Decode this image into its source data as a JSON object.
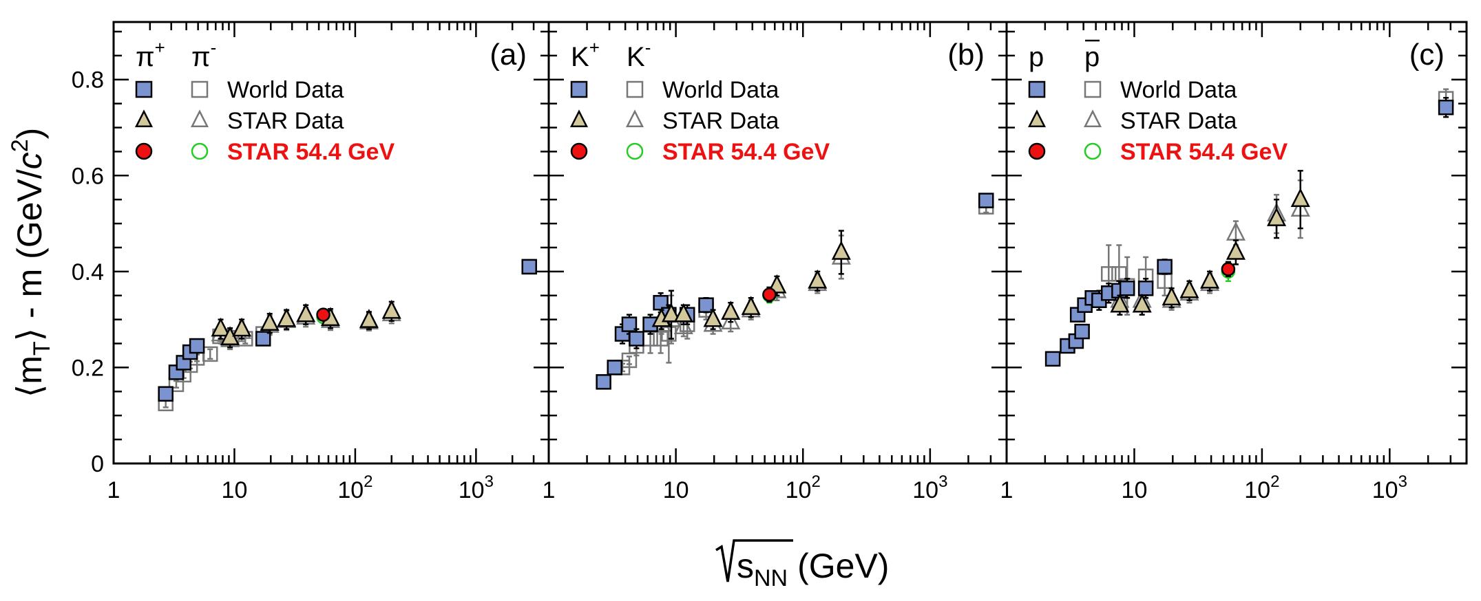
{
  "figure": {
    "y_axis_title": {
      "open": "⟨m",
      "sub": "T",
      "mid": "⟩ - m (GeV/",
      "c": "c",
      "exp": "2",
      "close": ")"
    },
    "x_axis_title": {
      "base": "s",
      "sub": "NN",
      "unit": "(GeV)"
    },
    "x_tick_labels": [
      "1",
      "10",
      "10",
      "10"
    ],
    "x_tick_exps": [
      "",
      "",
      "2",
      "3"
    ],
    "y_tick_labels": [
      "0",
      "0.2",
      "0.4",
      "0.6",
      "0.8"
    ],
    "legend_rows": [
      "World Data",
      "STAR Data",
      "STAR 54.4 GeV"
    ]
  },
  "colors": {
    "world_fill": "#7b93cf",
    "star_fill": "#d2c89b",
    "star544_fill": "#ee1111",
    "neg_open": "#777777",
    "neg_star544": "#22cc22",
    "legend_red_text": "#ee1111"
  },
  "chart_data": [
    {
      "type": "scatter",
      "panel_label": "(a)",
      "particles": {
        "pos": "π",
        "pos_sup": "+",
        "neg": "π",
        "neg_sup": "-",
        "neg_bar": false
      },
      "xscale": "log",
      "xlim": [
        1,
        4000
      ],
      "ylim": [
        0,
        0.92
      ],
      "xlabel": "√sNN (GeV)",
      "ylabel": "⟨mT⟩ - m (GeV/c²)",
      "series": [
        {
          "name": "World Data",
          "charge": "+",
          "points": [
            [
              2.7,
              0.145
            ],
            [
              3.3,
              0.19
            ],
            [
              3.8,
              0.21
            ],
            [
              4.3,
              0.232
            ],
            [
              4.9,
              0.245
            ],
            [
              17.3,
              0.26
            ],
            [
              2760,
              0.41
            ]
          ],
          "err": [
            0.008,
            0.007,
            0.007,
            0.007,
            0.007,
            0.008,
            0.008
          ]
        },
        {
          "name": "World Data",
          "charge": "-",
          "points": [
            [
              2.7,
              0.125
            ],
            [
              3.3,
              0.165
            ],
            [
              3.8,
              0.185
            ],
            [
              4.3,
              0.205
            ],
            [
              4.9,
              0.22
            ],
            [
              6.3,
              0.228
            ],
            [
              7.6,
              0.265
            ],
            [
              8.8,
              0.262
            ],
            [
              12.3,
              0.26
            ],
            [
              17.3,
              0.27
            ],
            [
              2760,
              0.41
            ]
          ],
          "err": [
            0.008,
            0.007,
            0.007,
            0.007,
            0.007,
            0.01,
            0.01,
            0.01,
            0.01,
            0.01,
            0.008
          ]
        },
        {
          "name": "STAR Data",
          "charge": "+",
          "points": [
            [
              7.7,
              0.28
            ],
            [
              9.2,
              0.262
            ],
            [
              11.5,
              0.28
            ],
            [
              19.6,
              0.292
            ],
            [
              27,
              0.3
            ],
            [
              39,
              0.31
            ],
            [
              62.4,
              0.302
            ],
            [
              130,
              0.298
            ],
            [
              200,
              0.317
            ]
          ],
          "err": [
            0.02,
            0.02,
            0.02,
            0.02,
            0.02,
            0.02,
            0.02,
            0.018,
            0.02
          ]
        },
        {
          "name": "STAR Data",
          "charge": "-",
          "points": [
            [
              7.7,
              0.27
            ],
            [
              9.2,
              0.258
            ],
            [
              11.5,
              0.275
            ],
            [
              19.6,
              0.288
            ],
            [
              27,
              0.298
            ],
            [
              39,
              0.305
            ],
            [
              62.4,
              0.298
            ],
            [
              130,
              0.295
            ],
            [
              200,
              0.312
            ]
          ],
          "err": [
            0.02,
            0.02,
            0.02,
            0.02,
            0.02,
            0.02,
            0.02,
            0.018,
            0.02
          ]
        },
        {
          "name": "STAR 54.4 GeV",
          "charge": "+",
          "points": [
            [
              54.4,
              0.31
            ]
          ],
          "err": [
            0.012
          ]
        },
        {
          "name": "STAR 54.4 GeV",
          "charge": "-",
          "points": [
            [
              54.4,
              0.305
            ]
          ],
          "err": [
            0.012
          ]
        }
      ]
    },
    {
      "type": "scatter",
      "panel_label": "(b)",
      "particles": {
        "pos": "K",
        "pos_sup": "+",
        "neg": "K",
        "neg_sup": "-",
        "neg_bar": false
      },
      "xscale": "log",
      "xlim": [
        1,
        4000
      ],
      "ylim": [
        0,
        0.92
      ],
      "xlabel": "√sNN (GeV)",
      "ylabel": "⟨mT⟩ - m (GeV/c²)",
      "series": [
        {
          "name": "World Data",
          "charge": "+",
          "points": [
            [
              2.7,
              0.17
            ],
            [
              3.3,
              0.2
            ],
            [
              3.8,
              0.27
            ],
            [
              4.3,
              0.29
            ],
            [
              4.9,
              0.26
            ],
            [
              6.3,
              0.29
            ],
            [
              7.6,
              0.335
            ],
            [
              8.8,
              0.31
            ],
            [
              12.3,
              0.31
            ],
            [
              17.3,
              0.33
            ],
            [
              2760,
              0.548
            ]
          ],
          "err": [
            0.008,
            0.008,
            0.02,
            0.02,
            0.02,
            0.02,
            0.02,
            0.02,
            0.02,
            0.015,
            0.012
          ]
        },
        {
          "name": "World Data",
          "charge": "-",
          "points": [
            [
              3.8,
              0.2
            ],
            [
              4.3,
              0.215
            ],
            [
              4.9,
              0.245
            ],
            [
              6.3,
              0.26
            ],
            [
              7.6,
              0.26
            ],
            [
              8.8,
              0.27
            ],
            [
              12.3,
              0.29
            ],
            [
              17.3,
              0.32
            ],
            [
              2760,
              0.535
            ]
          ],
          "err": [
            0.008,
            0.008,
            0.02,
            0.03,
            0.03,
            0.06,
            0.03,
            0.02,
            0.012
          ]
        },
        {
          "name": "STAR Data",
          "charge": "+",
          "points": [
            [
              7.7,
              0.3
            ],
            [
              9.2,
              0.31
            ],
            [
              11.5,
              0.31
            ],
            [
              19.6,
              0.3
            ],
            [
              27,
              0.315
            ],
            [
              39,
              0.325
            ],
            [
              62.4,
              0.37
            ],
            [
              130,
              0.38
            ],
            [
              200,
              0.44
            ]
          ],
          "err": [
            0.02,
            0.05,
            0.02,
            0.02,
            0.02,
            0.02,
            0.02,
            0.02,
            0.045
          ]
        },
        {
          "name": "STAR Data",
          "charge": "-",
          "points": [
            [
              7.7,
              0.29
            ],
            [
              9.2,
              0.3
            ],
            [
              11.5,
              0.285
            ],
            [
              19.6,
              0.29
            ],
            [
              27,
              0.295
            ],
            [
              39,
              0.32
            ],
            [
              62.4,
              0.36
            ],
            [
              130,
              0.375
            ],
            [
              200,
              0.43
            ]
          ],
          "err": [
            0.02,
            0.05,
            0.02,
            0.02,
            0.02,
            0.02,
            0.02,
            0.02,
            0.045
          ]
        },
        {
          "name": "STAR 54.4 GeV",
          "charge": "+",
          "points": [
            [
              54.4,
              0.352
            ]
          ],
          "err": [
            0.015
          ]
        },
        {
          "name": "STAR 54.4 GeV",
          "charge": "-",
          "points": [
            [
              54.4,
              0.35
            ]
          ],
          "err": [
            0.015
          ]
        }
      ]
    },
    {
      "type": "scatter",
      "panel_label": "(c)",
      "particles": {
        "pos": "p",
        "pos_sup": "",
        "neg": "p",
        "neg_sup": "",
        "neg_bar": true
      },
      "xscale": "log",
      "xlim": [
        1,
        4000
      ],
      "ylim": [
        0,
        0.92
      ],
      "xlabel": "√sNN (GeV)",
      "ylabel": "⟨mT⟩ - m (GeV/c²)",
      "series": [
        {
          "name": "World Data",
          "charge": "+",
          "points": [
            [
              2.3,
              0.218
            ],
            [
              3.0,
              0.245
            ],
            [
              3.5,
              0.255
            ],
            [
              3.6,
              0.31
            ],
            [
              3.9,
              0.275
            ],
            [
              4.1,
              0.33
            ],
            [
              4.7,
              0.345
            ],
            [
              5.3,
              0.34
            ],
            [
              6.3,
              0.355
            ],
            [
              7.6,
              0.36
            ],
            [
              8.8,
              0.365
            ],
            [
              12.3,
              0.365
            ],
            [
              17.3,
              0.41
            ],
            [
              2760,
              0.742
            ]
          ],
          "err": [
            0.008,
            0.008,
            0.008,
            0.01,
            0.01,
            0.01,
            0.01,
            0.02,
            0.02,
            0.02,
            0.02,
            0.02,
            0.015,
            0.02
          ]
        },
        {
          "name": "World Data",
          "charge": "-",
          "points": [
            [
              6.3,
              0.395
            ],
            [
              7.6,
              0.395
            ],
            [
              8.8,
              0.37
            ],
            [
              12.3,
              0.39
            ],
            [
              17.3,
              0.38
            ],
            [
              2760,
              0.76
            ]
          ],
          "err": [
            0.06,
            0.06,
            0.06,
            0.04,
            0.03,
            0.02
          ]
        },
        {
          "name": "STAR Data",
          "charge": "+",
          "points": [
            [
              7.7,
              0.33
            ],
            [
              11.5,
              0.33
            ],
            [
              19.6,
              0.345
            ],
            [
              27,
              0.36
            ],
            [
              39,
              0.38
            ],
            [
              62.4,
              0.44
            ],
            [
              130,
              0.51
            ],
            [
              200,
              0.55
            ]
          ],
          "err": [
            0.02,
            0.02,
            0.02,
            0.02,
            0.02,
            0.025,
            0.04,
            0.06
          ]
        },
        {
          "name": "STAR Data",
          "charge": "-",
          "points": [
            [
              7.7,
              0.34
            ],
            [
              11.5,
              0.34
            ],
            [
              19.6,
              0.34
            ],
            [
              27,
              0.355
            ],
            [
              39,
              0.375
            ],
            [
              62.4,
              0.48
            ],
            [
              130,
              0.52
            ],
            [
              200,
              0.53
            ]
          ],
          "err": [
            0.02,
            0.02,
            0.02,
            0.02,
            0.02,
            0.025,
            0.04,
            0.06
          ]
        },
        {
          "name": "STAR 54.4 GeV",
          "charge": "+",
          "points": [
            [
              54.4,
              0.405
            ]
          ],
          "err": [
            0.015
          ]
        },
        {
          "name": "STAR 54.4 GeV",
          "charge": "-",
          "points": [
            [
              54.4,
              0.4
            ]
          ],
          "err": [
            0.02
          ]
        }
      ]
    }
  ]
}
